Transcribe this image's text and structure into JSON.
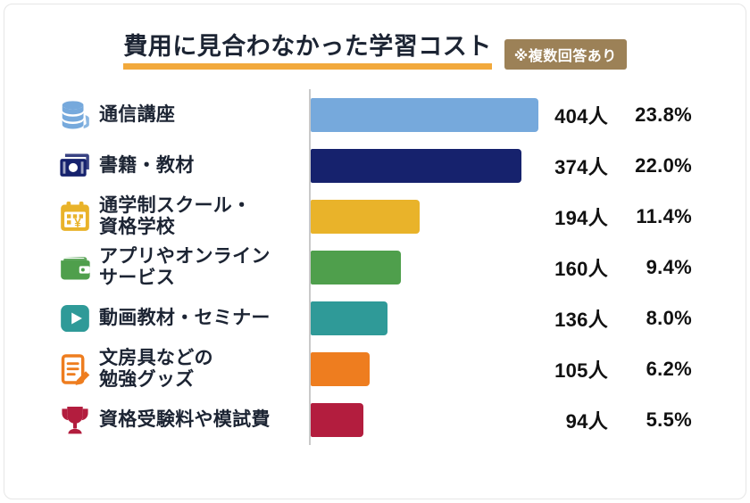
{
  "page": {
    "title": "費用に見合わなかった学習コスト",
    "note_badge": "※複数回答あり",
    "colors": {
      "title_underline": "#f2a93c",
      "badge_bg": "#9c8157",
      "axis_line": "#c9c9c9",
      "text_dark": "#1c2433"
    }
  },
  "chart_data": {
    "type": "bar",
    "orientation": "horizontal",
    "title": "費用に見合わなかった学習コスト",
    "note": "※複数回答あり",
    "value_unit": "人",
    "max_value": 404,
    "grid": false,
    "legend": false,
    "rows": [
      {
        "label": "通信講座",
        "icon": "coins-icon",
        "value": 404,
        "count": "404人",
        "percent": "23.8%",
        "color": "#76a9dc"
      },
      {
        "label": "書籍・教材",
        "icon": "banknotes-icon",
        "value": 374,
        "count": "374人",
        "percent": "22.0%",
        "color": "#16226d"
      },
      {
        "label": "通学制スクール・\n資格学校",
        "icon": "calendar-yen-icon",
        "value": 194,
        "count": "194人",
        "percent": "11.4%",
        "color": "#e9b32a"
      },
      {
        "label": "アプリやオンライン\nサービス",
        "icon": "wallet-icon",
        "value": 160,
        "count": "160人",
        "percent": "9.4%",
        "color": "#4f9f4c"
      },
      {
        "label": "動画教材・セミナー",
        "icon": "play-icon",
        "value": 136,
        "count": "136人",
        "percent": "8.0%",
        "color": "#2f9a98"
      },
      {
        "label": "文房具などの\n勉強グッズ",
        "icon": "notepad-icon",
        "value": 105,
        "count": "105人",
        "percent": "6.2%",
        "color": "#ee7d1f"
      },
      {
        "label": "資格受験料や模試費",
        "icon": "trophy-icon",
        "value": 94,
        "count": "94人",
        "percent": "5.5%",
        "color": "#b31d3e"
      }
    ]
  }
}
